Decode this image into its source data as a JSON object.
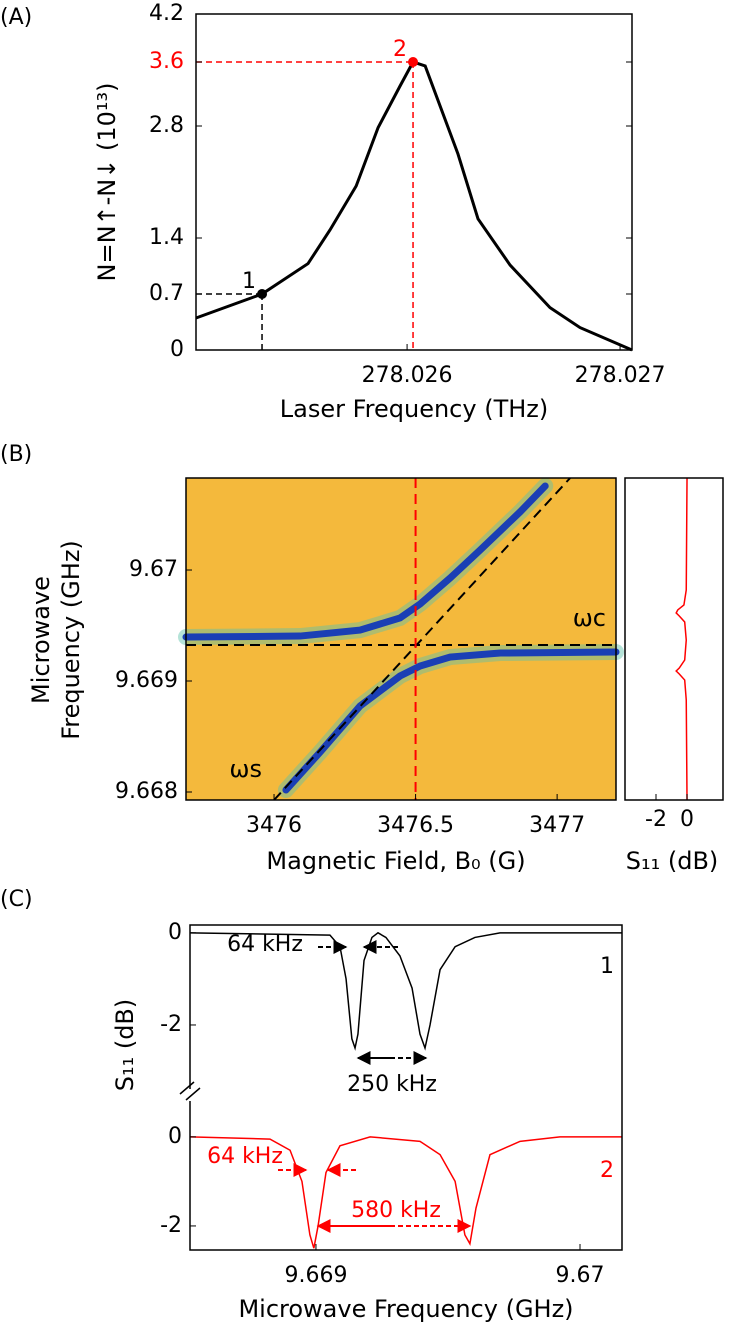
{
  "chart_data": [
    {
      "type": "line",
      "panel": "(A)",
      "xlabel": "Laser Frequency (THz)",
      "ylabel": "N=N↑-N↓ (10¹³)",
      "x": [
        278.025009,
        278.025319,
        278.025535,
        278.025638,
        278.025761,
        278.025864,
        278.025967,
        278.026028,
        278.026085,
        278.026239,
        278.026333,
        278.026484,
        278.026671,
        278.026812,
        278.027056
      ],
      "values": [
        0.4,
        0.7,
        1.08,
        1.5,
        2.05,
        2.78,
        3.3,
        3.6,
        3.55,
        2.45,
        1.64,
        1.06,
        0.53,
        0.28,
        0
      ],
      "color": "#000000",
      "xlim": [
        278.025009,
        278.027056
      ],
      "ylim": [
        0,
        4.2
      ],
      "xticks": [
        278.026,
        278.027
      ],
      "yticks": [
        0,
        0.7,
        1.4,
        2.8,
        3.6,
        4.2
      ],
      "ytick_colors": [
        "#000000",
        "#000000",
        "#000000",
        "#000000",
        "#ff0000",
        "#000000"
      ],
      "markers": [
        {
          "label": "1",
          "x": 278.025319,
          "y": 0.7,
          "color": "#000000"
        },
        {
          "label": "2",
          "x": 278.026028,
          "y": 3.6,
          "color": "#ff0000"
        }
      ]
    },
    {
      "type": "line",
      "panel": "(B)",
      "xlabel": "Magnetic Field, B₀ (G)",
      "ylabel": [
        "Microwave",
        "Frequency (GHz)"
      ],
      "background_color": "#f4b93c",
      "series": [
        {
          "color": "#1a3fb5",
          "x": [
            3475.689,
            3476.092,
            3476.304,
            3476.445,
            3476.516,
            3476.622,
            3476.728,
            3476.869,
            3476.958
          ],
          "values": [
            9.669396,
            9.669405,
            9.669459,
            9.669568,
            9.669694,
            9.669928,
            9.67018,
            9.670523,
            9.670757
          ]
        },
        {
          "color": "#1a3fb5",
          "x": [
            3476.042,
            3476.163,
            3476.304,
            3476.445,
            3476.516,
            3476.622,
            3476.799,
            3477.208
          ],
          "values": [
            9.668018,
            9.66836,
            9.668775,
            9.669045,
            9.669135,
            9.669216,
            9.669252,
            9.669261
          ]
        }
      ],
      "xlim": [
        3475.689,
        3477.208
      ],
      "ylim": [
        9.667928,
        9.670829
      ],
      "xticks": [
        3476,
        3476.5,
        3477
      ],
      "yticks": [
        9.668,
        9.669,
        9.67
      ],
      "guides": [
        {
          "label": "ωc",
          "y": 9.669324,
          "color": "#000000"
        },
        {
          "label": "ωs",
          "x": [
            3476.0,
            3477.046
          ],
          "y": [
            9.667928,
            9.670829
          ],
          "color": "#000000"
        },
        {
          "x": 3476.5,
          "color": "#ff0000"
        }
      ]
    },
    {
      "type": "line",
      "orientation": "vertical",
      "xlabel": "S₁₁ (dB)",
      "color": "#ff0000",
      "x": [
        9.670829,
        9.66982,
        9.669685,
        9.66964,
        9.669613,
        9.669586,
        9.669532,
        9.669369,
        9.669189,
        9.669117,
        9.66909,
        9.669063,
        9.669009,
        9.668829,
        9.667928
      ],
      "values": [
        0,
        -0.05,
        -0.2,
        -0.6,
        -0.7,
        -0.5,
        -0.15,
        -0.05,
        -0.15,
        -0.5,
        -0.7,
        -0.5,
        -0.15,
        -0.05,
        0
      ],
      "xlim": [
        -4,
        2.32
      ],
      "xticks": [
        -2,
        0
      ],
      "ylim": [
        9.667928,
        9.670829
      ]
    },
    {
      "type": "line",
      "panel": "(C)",
      "xlabel": "Microwave Frequency (GHz)",
      "ylabel": "S₁₁ (dB)",
      "xlim": [
        9.668523,
        9.670159
      ],
      "xticks": [
        9.669,
        9.67
      ],
      "series": [
        {
          "name": "1",
          "color": "#000000",
          "ylim": [
            -3.52,
            0.17
          ],
          "yticks": [
            0,
            -2
          ],
          "annotations": [
            "64 kHz",
            "250 kHz"
          ],
          "x": [
            9.668523,
            9.669053,
            9.669091,
            9.669114,
            9.669136,
            9.669148,
            9.669159,
            9.669182,
            9.669212,
            9.669235,
            9.669265,
            9.669318,
            9.669364,
            9.669394,
            9.669413,
            9.669432,
            9.66947,
            9.669527,
            9.669602,
            9.669697,
            9.670159
          ],
          "values": [
            0,
            -0.05,
            -0.3,
            -1.0,
            -2.3,
            -2.5,
            -2.2,
            -0.6,
            -0.1,
            0,
            -0.1,
            -0.5,
            -1.2,
            -2.2,
            -2.5,
            -2.0,
            -0.8,
            -0.3,
            -0.1,
            0,
            0
          ]
        },
        {
          "name": "2",
          "color": "#ff0000",
          "ylim": [
            -2.54,
            0.94
          ],
          "yticks": [
            0,
            -2
          ],
          "annotations": [
            "64 kHz",
            "580 kHz"
          ],
          "x": [
            9.668523,
            9.668826,
            9.668902,
            9.668947,
            9.668977,
            9.668992,
            9.669008,
            9.669038,
            9.669091,
            9.669205,
            9.669394,
            9.66947,
            9.669527,
            9.669564,
            9.669583,
            9.669606,
            9.669659,
            9.669773,
            9.669924,
            9.670159
          ],
          "values": [
            0,
            -0.05,
            -0.3,
            -1.0,
            -2.2,
            -2.5,
            -2.0,
            -0.8,
            -0.2,
            0,
            -0.1,
            -0.4,
            -1.0,
            -2.2,
            -2.4,
            -1.6,
            -0.4,
            -0.1,
            0,
            0
          ]
        }
      ]
    }
  ]
}
